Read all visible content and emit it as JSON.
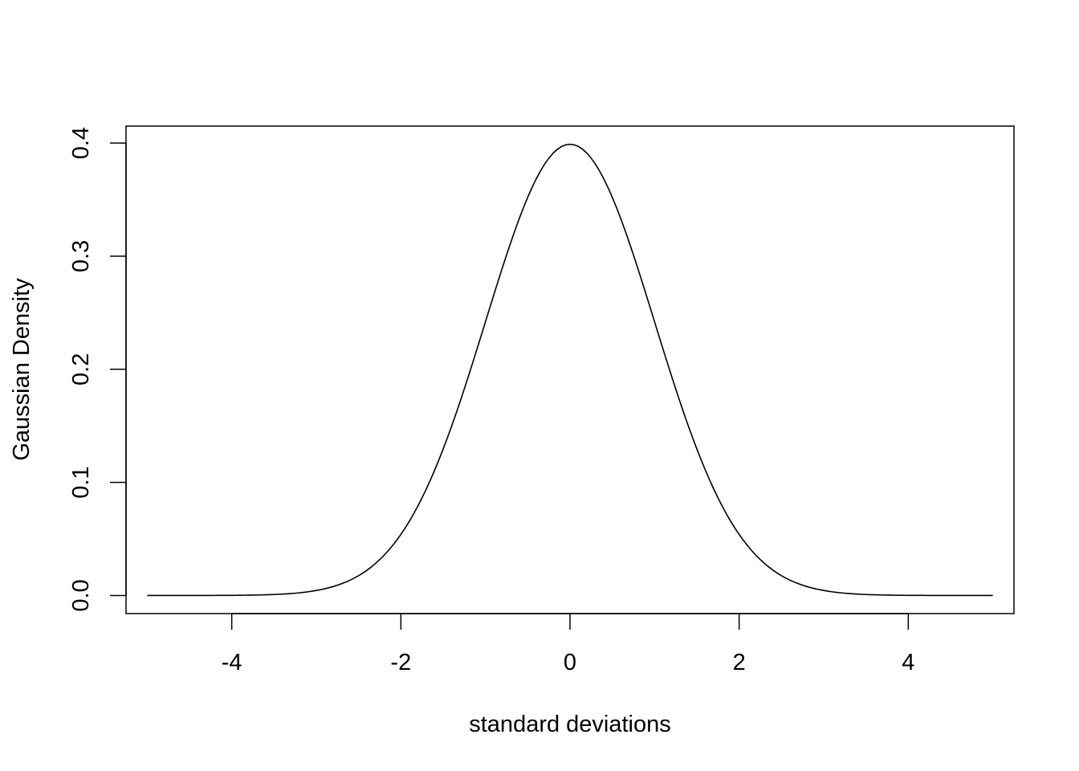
{
  "chart_data": {
    "type": "line",
    "title": "",
    "xlabel": "standard deviations",
    "ylabel": "Gaussian Density",
    "xlim": [
      -5.25,
      5.25
    ],
    "ylim": [
      -0.016,
      0.415
    ],
    "x_ticks": [
      -4,
      -2,
      0,
      2,
      4
    ],
    "x_tick_labels": [
      "-4",
      "-2",
      "0",
      "2",
      "4"
    ],
    "y_ticks": [
      0.0,
      0.1,
      0.2,
      0.3,
      0.4
    ],
    "y_tick_labels": [
      "0.0",
      "0.1",
      "0.2",
      "0.3",
      "0.4"
    ],
    "grid": false,
    "colors": {
      "line": "#000000",
      "axes": "#000000",
      "background": "#ffffff"
    },
    "series": [
      {
        "x": [
          -5.0,
          -4.5,
          -4.0,
          -3.5,
          -3.0,
          -2.75,
          -2.5,
          -2.25,
          -2.0,
          -1.75,
          -1.5,
          -1.25,
          -1.0,
          -0.75,
          -0.5,
          -0.25,
          0.0,
          0.25,
          0.5,
          0.75,
          1.0,
          1.25,
          1.5,
          1.75,
          2.0,
          2.25,
          2.5,
          2.75,
          3.0,
          3.5,
          4.0,
          4.5,
          5.0
        ],
        "y": [
          1.5e-06,
          1.6e-05,
          0.000134,
          0.000873,
          0.004432,
          0.009094,
          0.017528,
          0.03174,
          0.053991,
          0.086277,
          0.129518,
          0.182649,
          0.241971,
          0.301137,
          0.352065,
          0.386668,
          0.398942,
          0.386668,
          0.352065,
          0.301137,
          0.241971,
          0.182649,
          0.129518,
          0.086277,
          0.053991,
          0.03174,
          0.017528,
          0.009094,
          0.004432,
          0.000873,
          0.000134,
          1.6e-05,
          1.5e-06
        ]
      }
    ]
  }
}
